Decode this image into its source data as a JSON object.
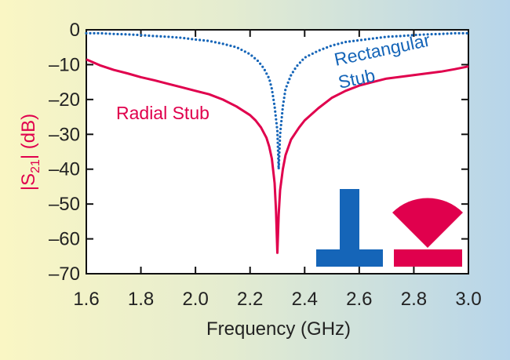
{
  "chart_data": {
    "type": "line",
    "xlabel": "Frequency (GHz)",
    "ylabel_parts": [
      "|S",
      "21",
      "| (dB)"
    ],
    "xlim": [
      1.6,
      3.0
    ],
    "ylim": [
      -70,
      0
    ],
    "xticks": [
      1.6,
      1.8,
      2.0,
      2.2,
      2.4,
      2.6,
      2.8,
      3.0
    ],
    "xtick_labels": [
      "1.6",
      "1.8",
      "2.0",
      "2.2",
      "2.4",
      "2.6",
      "2.8",
      "3.0"
    ],
    "yticks": [
      0,
      -10,
      -20,
      -30,
      -40,
      -50,
      -60,
      -70
    ],
    "ytick_labels": [
      "0",
      "–10",
      "–20",
      "–30",
      "–40",
      "–50",
      "–60",
      "–70"
    ],
    "grid": false,
    "series": [
      {
        "name": "Radial Stub",
        "color": "#e0004d",
        "style": "solid",
        "points": [
          [
            1.6,
            -8.5
          ],
          [
            1.65,
            -10.2
          ],
          [
            1.7,
            -11.5
          ],
          [
            1.75,
            -12.5
          ],
          [
            1.8,
            -13.6
          ],
          [
            1.85,
            -14.5
          ],
          [
            1.9,
            -15.5
          ],
          [
            1.95,
            -16.5
          ],
          [
            2.0,
            -17.5
          ],
          [
            2.05,
            -18.5
          ],
          [
            2.1,
            -20.0
          ],
          [
            2.15,
            -22.0
          ],
          [
            2.2,
            -24.5
          ],
          [
            2.22,
            -26.0
          ],
          [
            2.24,
            -28.0
          ],
          [
            2.26,
            -31.0
          ],
          [
            2.27,
            -33.5
          ],
          [
            2.28,
            -37.0
          ],
          [
            2.29,
            -44.0
          ],
          [
            2.295,
            -52.0
          ],
          [
            2.3,
            -64.0
          ],
          [
            2.305,
            -53.0
          ],
          [
            2.31,
            -46.0
          ],
          [
            2.32,
            -40.0
          ],
          [
            2.33,
            -36.0
          ],
          [
            2.35,
            -31.5
          ],
          [
            2.38,
            -28.0
          ],
          [
            2.4,
            -26.0
          ],
          [
            2.45,
            -22.5
          ],
          [
            2.5,
            -19.5
          ],
          [
            2.55,
            -17.5
          ],
          [
            2.6,
            -16.0
          ],
          [
            2.65,
            -15.0
          ],
          [
            2.7,
            -14.0
          ],
          [
            2.75,
            -13.5
          ],
          [
            2.8,
            -13.0
          ],
          [
            2.85,
            -12.5
          ],
          [
            2.9,
            -12.0
          ],
          [
            2.95,
            -11.3
          ],
          [
            3.0,
            -10.5
          ]
        ]
      },
      {
        "name": "Rectangular Stub",
        "color": "#1565b8",
        "style": "dotted",
        "points": [
          [
            1.6,
            -1.0
          ],
          [
            1.65,
            -1.0
          ],
          [
            1.7,
            -1.2
          ],
          [
            1.75,
            -1.3
          ],
          [
            1.8,
            -1.5
          ],
          [
            1.85,
            -1.8
          ],
          [
            1.9,
            -2.0
          ],
          [
            1.95,
            -2.3
          ],
          [
            2.0,
            -2.8
          ],
          [
            2.05,
            -3.2
          ],
          [
            2.1,
            -4.0
          ],
          [
            2.15,
            -5.0
          ],
          [
            2.2,
            -7.0
          ],
          [
            2.23,
            -9.0
          ],
          [
            2.25,
            -11.0
          ],
          [
            2.27,
            -14.0
          ],
          [
            2.28,
            -17.0
          ],
          [
            2.29,
            -22.0
          ],
          [
            2.3,
            -29.0
          ],
          [
            2.305,
            -40.0
          ],
          [
            2.31,
            -30.0
          ],
          [
            2.32,
            -22.0
          ],
          [
            2.33,
            -17.0
          ],
          [
            2.35,
            -13.0
          ],
          [
            2.37,
            -10.5
          ],
          [
            2.4,
            -8.0
          ],
          [
            2.45,
            -6.0
          ],
          [
            2.5,
            -4.5
          ],
          [
            2.55,
            -3.5
          ],
          [
            2.6,
            -3.0
          ],
          [
            2.65,
            -2.5
          ],
          [
            2.7,
            -2.0
          ],
          [
            2.75,
            -1.8
          ],
          [
            2.8,
            -1.5
          ],
          [
            2.85,
            -1.3
          ],
          [
            2.9,
            -1.2
          ],
          [
            2.95,
            -1.0
          ],
          [
            3.0,
            -1.0
          ]
        ]
      }
    ],
    "annotations": [
      {
        "series": "Radial Stub",
        "lines": [
          "Radial Stub"
        ]
      },
      {
        "series": "Rectangular Stub",
        "lines": [
          "Rectangular",
          "Stub"
        ]
      }
    ],
    "insets": [
      {
        "name": "rectangular-stub-shape",
        "color": "#1565b8"
      },
      {
        "name": "radial-stub-shape",
        "color": "#e0004d"
      }
    ]
  }
}
